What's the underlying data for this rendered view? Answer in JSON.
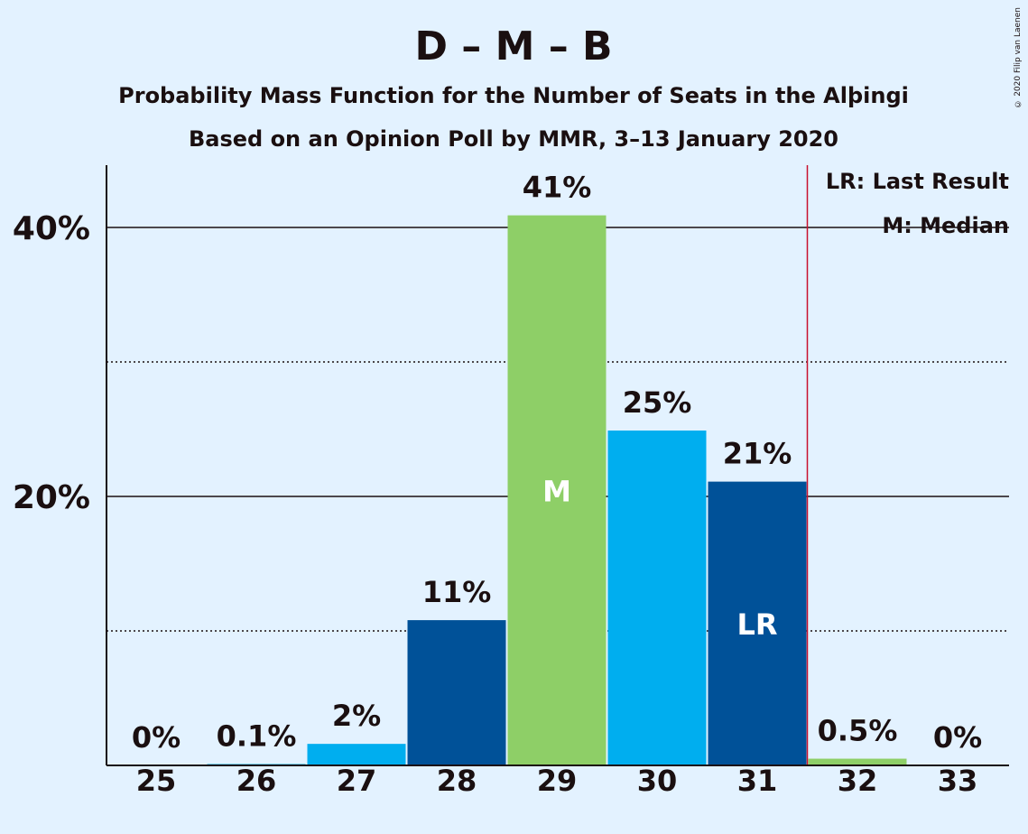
{
  "title": "D – M – B",
  "subtitle1": "Probability Mass Function for the Number of Seats in the Alþingi",
  "subtitle2": "Based on an Opinion Poll by MMR, 3–13 January 2020",
  "copyright": "© 2020 Filip van Laenen",
  "legend": {
    "lr": "LR: Last Result",
    "m": "M: Median"
  },
  "chart_data": {
    "type": "bar",
    "categories": [
      "25",
      "26",
      "27",
      "28",
      "29",
      "30",
      "31",
      "32",
      "33"
    ],
    "values": [
      0,
      0.1,
      1.6,
      10.8,
      40.9,
      24.9,
      21.1,
      0.5,
      0
    ],
    "labels": [
      "0%",
      "0.1%",
      "2%",
      "11%",
      "41%",
      "25%",
      "21%",
      "0.5%",
      "0%"
    ],
    "colors": [
      "#00aeef",
      "#00aeef",
      "#00aeef",
      "#005198",
      "#8ecf67",
      "#00aeef",
      "#005198",
      "#8ecf67",
      "#00aeef"
    ],
    "inbar_labels": {
      "29": "M",
      "31": "LR"
    },
    "ytick_labels": [
      "20%",
      "40%"
    ],
    "ytick_values": [
      20,
      40
    ],
    "minor_ytick_values": [
      10,
      30
    ],
    "ylim": [
      0,
      45
    ],
    "last_result": 31,
    "median": 29,
    "last_result_color": "#c8102e"
  }
}
